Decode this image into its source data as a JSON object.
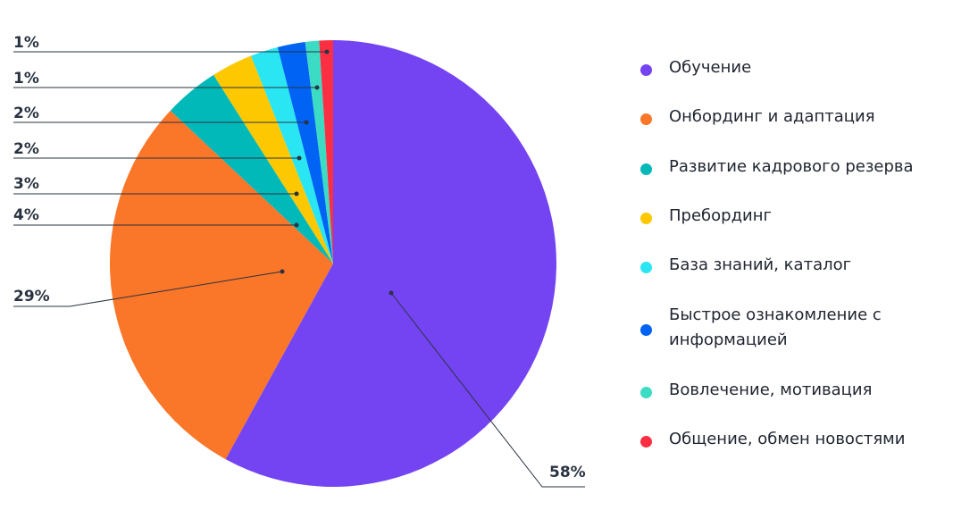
{
  "chart_data": {
    "type": "pie",
    "start": "top",
    "direction": "clockwise",
    "legend_placement": "right",
    "slices": [
      {
        "label": "Обучение",
        "value": 58,
        "display": "58%",
        "color": "#7444f2"
      },
      {
        "label": "Онбординг и адаптация",
        "value": 29,
        "display": "29%",
        "color": "#fa7628"
      },
      {
        "label": "Развитие кадрового резерва",
        "value": 4,
        "display": "4%",
        "color": "#02b9b9"
      },
      {
        "label": "Пребординг",
        "value": 3,
        "display": "3%",
        "color": "#fdc800"
      },
      {
        "label": "База знаний, каталог",
        "value": 2,
        "display": "2%",
        "color": "#2ae6f2"
      },
      {
        "label": "Быстрое ознакомление с информацией",
        "value": 2,
        "display": "2%",
        "color": "#0063f4"
      },
      {
        "label": "Вовлечение, мотивация",
        "value": 1,
        "display": "1%",
        "color": "#3cdcc4"
      },
      {
        "label": "Общение, обмен новостями",
        "value": 1,
        "display": "1%",
        "color": "#fb2f43"
      }
    ]
  }
}
